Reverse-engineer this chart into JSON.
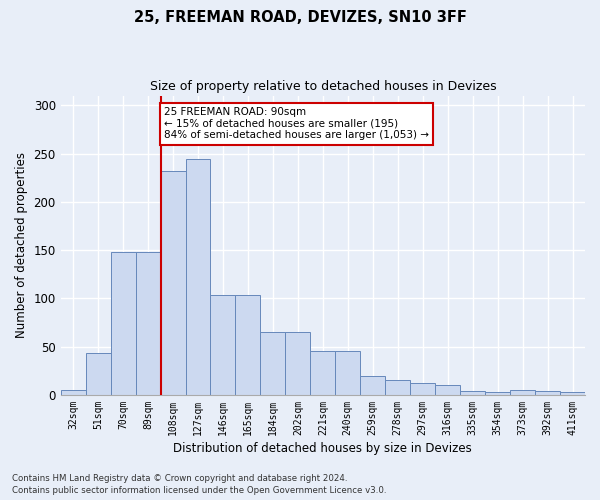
{
  "title": "25, FREEMAN ROAD, DEVIZES, SN10 3FF",
  "subtitle": "Size of property relative to detached houses in Devizes",
  "xlabel": "Distribution of detached houses by size in Devizes",
  "ylabel": "Number of detached properties",
  "footnote1": "Contains HM Land Registry data © Crown copyright and database right 2024.",
  "footnote2": "Contains public sector information licensed under the Open Government Licence v3.0.",
  "categories": [
    "32sqm",
    "51sqm",
    "70sqm",
    "89sqm",
    "108sqm",
    "127sqm",
    "146sqm",
    "165sqm",
    "184sqm",
    "202sqm",
    "221sqm",
    "240sqm",
    "259sqm",
    "278sqm",
    "297sqm",
    "316sqm",
    "335sqm",
    "354sqm",
    "373sqm",
    "392sqm",
    "411sqm"
  ],
  "values": [
    5,
    43,
    148,
    148,
    232,
    244,
    104,
    104,
    65,
    65,
    45,
    45,
    20,
    15,
    12,
    10,
    4,
    3,
    5,
    4,
    3
  ],
  "bar_color": "#ccd9f0",
  "bar_edge_color": "#6688bb",
  "property_line_x": 3.5,
  "annotation_text1": "25 FREEMAN ROAD: 90sqm",
  "annotation_text2": "← 15% of detached houses are smaller (195)",
  "annotation_text3": "84% of semi-detached houses are larger (1,053) →",
  "annotation_box_facecolor": "#ffffff",
  "annotation_border_color": "#cc0000",
  "vline_color": "#cc0000",
  "ylim": [
    0,
    310
  ],
  "yticks": [
    0,
    50,
    100,
    150,
    200,
    250,
    300
  ],
  "background_color": "#e8eef8",
  "grid_color": "#ffffff"
}
